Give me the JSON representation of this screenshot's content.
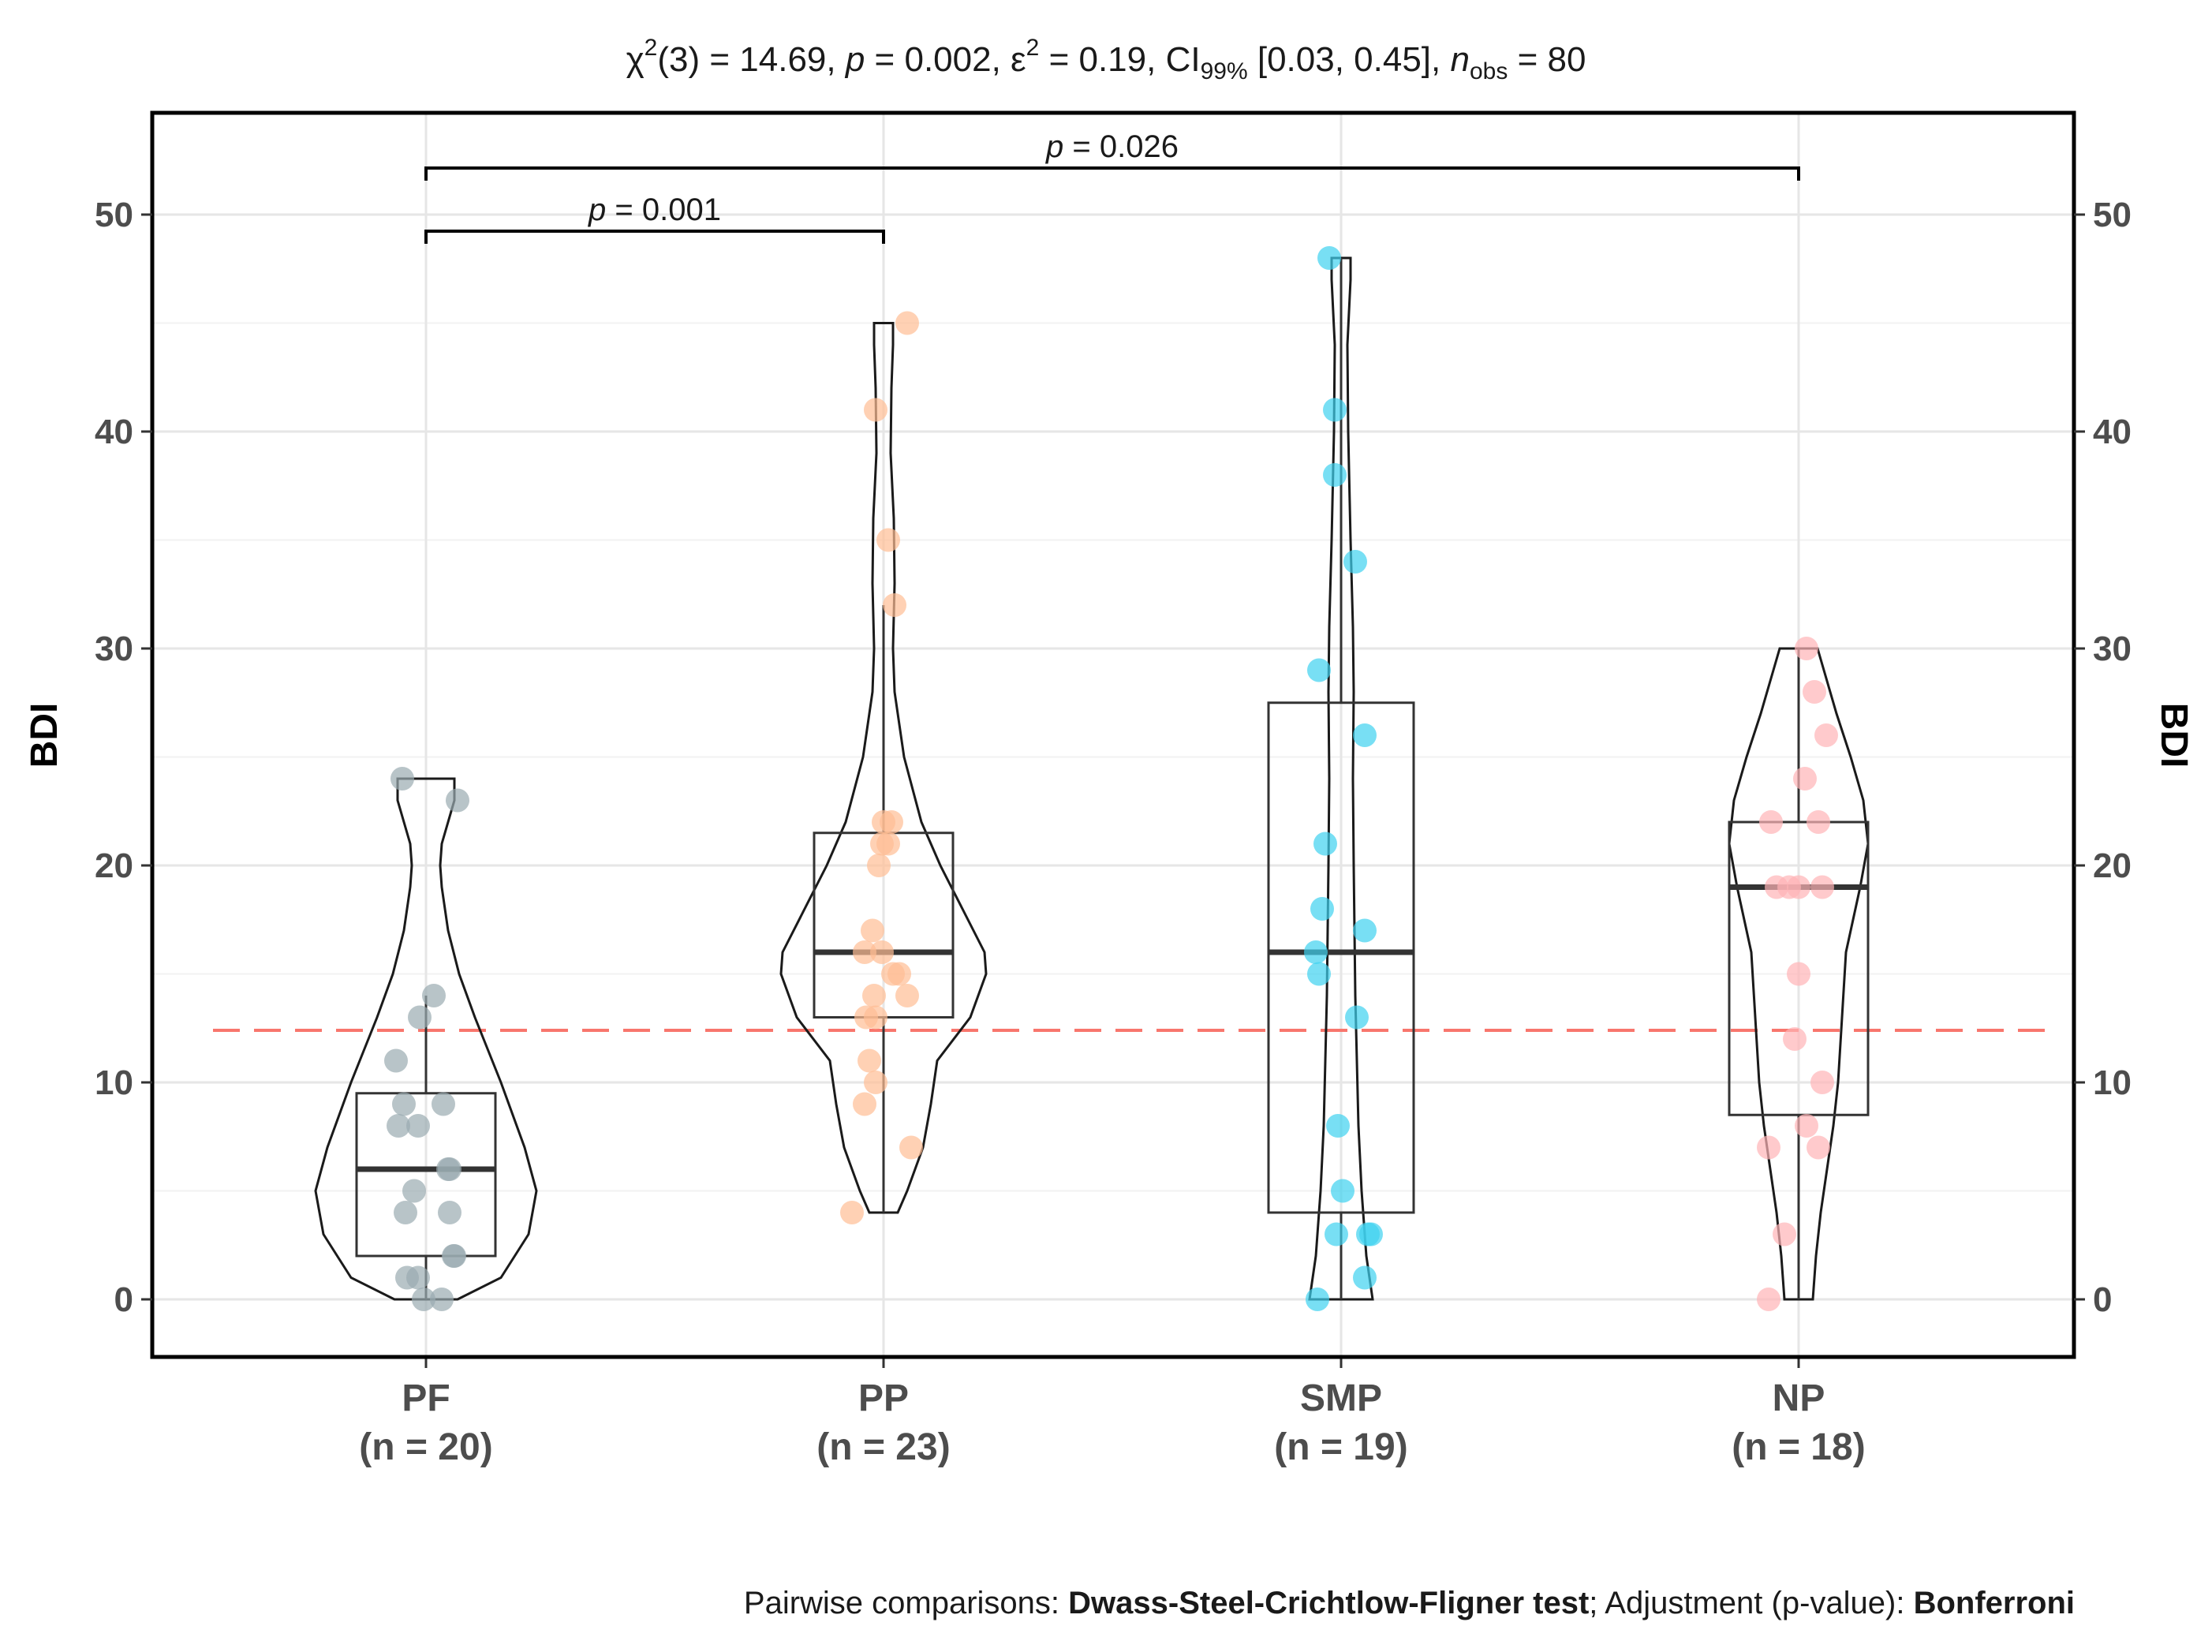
{
  "chart_data": {
    "type": "violin-box-scatter",
    "subtitle": {
      "chi": "χ",
      "df_part": "(3) = 14.69, ",
      "p_italic": "p",
      "p_part": " = 0.002, ε",
      "eps_part": " = 0.19, CI",
      "ci_sub": "99%",
      "ci_part": " [0.03, 0.45], ",
      "n_italic": "n",
      "n_sub": "obs",
      "n_part": " = 80",
      "sup": "2"
    },
    "ylabel": "BDI",
    "ylabel_right": "BDI",
    "ylim": [
      -2.5,
      55
    ],
    "yticks": [
      0,
      10,
      20,
      30,
      40,
      50
    ],
    "reference_line": 12.4,
    "reference_line_color": "#f8766d",
    "categories": [
      {
        "name": "PF",
        "n_label": "(n = 20)",
        "color": "#9aabb0",
        "box": {
          "min": 0,
          "q1": 2,
          "median": 6,
          "q3": 9.5,
          "max": 24
        },
        "whisker_low": 0,
        "whisker_high": 14,
        "points": [
          24,
          23,
          14,
          13,
          11,
          9,
          9,
          8,
          8,
          6,
          6,
          5,
          4,
          4,
          2,
          2,
          1,
          1,
          0,
          0
        ]
      },
      {
        "name": "PP",
        "n_label": "(n = 23)",
        "color": "#ffbe94",
        "box": {
          "min": 4,
          "q1": 13,
          "median": 16,
          "q3": 21.5,
          "max": 45
        },
        "whisker_low": 4,
        "whisker_high": 32,
        "points": [
          45,
          41,
          35,
          32,
          22,
          22,
          21,
          21,
          20,
          17,
          16,
          16,
          15,
          15,
          14,
          14,
          13,
          13,
          11,
          10,
          9,
          7,
          4
        ]
      },
      {
        "name": "SMP",
        "n_label": "(n = 19)",
        "color": "#3fd2ef",
        "box": {
          "min": 0,
          "q1": 4,
          "median": 16,
          "q3": 27.5,
          "max": 48
        },
        "whisker_low": 0,
        "whisker_high": 48,
        "points": [
          48,
          41,
          38,
          34,
          29,
          26,
          21,
          18,
          17,
          16,
          15,
          13,
          8,
          5,
          3,
          3,
          3,
          1,
          0
        ]
      },
      {
        "name": "NP",
        "n_label": "(n = 18)",
        "color": "#ffb3b6",
        "box": {
          "min": 0,
          "q1": 8.5,
          "median": 19,
          "q3": 22,
          "max": 30
        },
        "whisker_low": 0,
        "whisker_high": 30,
        "points": [
          30,
          28,
          26,
          24,
          22,
          22,
          19,
          19,
          19,
          19,
          15,
          12,
          10,
          8,
          7,
          7,
          3,
          0
        ]
      }
    ],
    "comparisons": [
      {
        "from": "PF",
        "to": "PP",
        "p_prefix": "p",
        "p_value": " = 0.001",
        "level": 1
      },
      {
        "from": "PF",
        "to": "NP",
        "p_prefix": "p",
        "p_value": " = 0.026",
        "level": 2
      }
    ],
    "grid": true
  },
  "caption": {
    "prefix": "Pairwise comparisons: ",
    "test": "Dwass-Steel-Crichtlow-Fligner test",
    "mid": "; Adjustment (p-value): ",
    "adjust": "Bonferroni"
  }
}
